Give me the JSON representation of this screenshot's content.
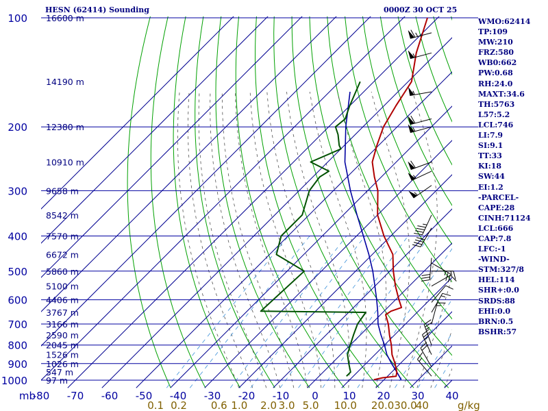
{
  "colors": {
    "frame": "#0000a0",
    "isotherm": "#000090",
    "dry_adiabat": "#00a000",
    "moist_adiabat": "#505050",
    "mixing_ratio": "#3a8fd8",
    "temperature": "#b00000",
    "dewpoint": "#005000",
    "parcel": "#0000a0",
    "label": "#000080",
    "mixing_label": "#806000",
    "wind_barb": "#000000"
  },
  "chart_data": {
    "type": "skew-t log-p",
    "title_left": "HESN (62414) Sounding",
    "title_right": "0000Z 30 OCT 25",
    "pressure_unit_label": "mb",
    "xlim": [
      -80,
      40
    ],
    "pressure_range": [
      100,
      1000
    ],
    "pressure_ticks": [
      100,
      200,
      300,
      400,
      500,
      600,
      700,
      800,
      900,
      1000
    ],
    "temperature_ticks": [
      -80,
      -70,
      -60,
      -50,
      -40,
      -30,
      -20,
      -10,
      0,
      10,
      20,
      30,
      40
    ],
    "temperature_tick_labels": [
      "-80",
      "-70",
      "-60",
      "-50",
      "-40",
      "-30",
      "-20",
      "-10",
      "0",
      "10",
      "20",
      "30",
      "40"
    ],
    "mixing_ratio_unit": "g/kg",
    "mixing_ratio_labels": [
      {
        "value": 0.1,
        "text": "0.1"
      },
      {
        "value": 0.2,
        "text": "0.2"
      },
      {
        "value": 0.6,
        "text": "0.6"
      },
      {
        "value": 1.0,
        "text": "1.0"
      },
      {
        "value": 2.0,
        "text": "2.0"
      },
      {
        "value": 3.0,
        "text": "3.0"
      },
      {
        "value": 5.0,
        "text": "5.0"
      },
      {
        "value": 10.0,
        "text": "10.0"
      },
      {
        "value": 20.0,
        "text": "20.0"
      },
      {
        "value": 30.0,
        "text": "30.0"
      },
      {
        "value": 40.0,
        "text": "40"
      }
    ],
    "height_labels": [
      {
        "p": 100,
        "text": "16600 m"
      },
      {
        "p": 150,
        "text": "14190 m"
      },
      {
        "p": 200,
        "text": "12380 m"
      },
      {
        "p": 250,
        "text": "10910 m"
      },
      {
        "p": 300,
        "text": "9658 m"
      },
      {
        "p": 350,
        "text": "8542 m"
      },
      {
        "p": 400,
        "text": "7570 m"
      },
      {
        "p": 450,
        "text": "6672 m"
      },
      {
        "p": 500,
        "text": "5860 m"
      },
      {
        "p": 550,
        "text": "5100 m"
      },
      {
        "p": 600,
        "text": "4406 m"
      },
      {
        "p": 650,
        "text": "3767 m"
      },
      {
        "p": 700,
        "text": "3166 m"
      },
      {
        "p": 750,
        "text": "2590 m"
      },
      {
        "p": 800,
        "text": "2045 m"
      },
      {
        "p": 850,
        "text": "1526 m"
      },
      {
        "p": 900,
        "text": "1026 m"
      },
      {
        "p": 950,
        "text": "547 m"
      },
      {
        "p": 1000,
        "text": "97 m"
      }
    ],
    "temperature_profile": [
      {
        "p": 100,
        "t": -73
      },
      {
        "p": 125,
        "t": -66
      },
      {
        "p": 150,
        "t": -59
      },
      {
        "p": 175,
        "t": -56.5
      },
      {
        "p": 200,
        "t": -54
      },
      {
        "p": 225,
        "t": -50.5
      },
      {
        "p": 250,
        "t": -47
      },
      {
        "p": 275,
        "t": -42
      },
      {
        "p": 300,
        "t": -37
      },
      {
        "p": 350,
        "t": -30
      },
      {
        "p": 400,
        "t": -22
      },
      {
        "p": 450,
        "t": -14
      },
      {
        "p": 500,
        "t": -9
      },
      {
        "p": 550,
        "t": -4
      },
      {
        "p": 600,
        "t": 1
      },
      {
        "p": 630,
        "t": 4
      },
      {
        "p": 645,
        "t": 2
      },
      {
        "p": 660,
        "t": 1.5
      },
      {
        "p": 700,
        "t": 5
      },
      {
        "p": 750,
        "t": 8.5
      },
      {
        "p": 800,
        "t": 12
      },
      {
        "p": 850,
        "t": 15
      },
      {
        "p": 900,
        "t": 18.5
      },
      {
        "p": 950,
        "t": 21.5
      },
      {
        "p": 975,
        "t": 22.5
      },
      {
        "p": 985,
        "t": 19
      },
      {
        "p": 997,
        "t": 17
      }
    ],
    "dewpoint_profile": [
      {
        "p": 150,
        "t": -74
      },
      {
        "p": 175,
        "t": -70
      },
      {
        "p": 190,
        "t": -67.5
      },
      {
        "p": 200,
        "t": -68
      },
      {
        "p": 210,
        "t": -65
      },
      {
        "p": 225,
        "t": -61.5
      },
      {
        "p": 230,
        "t": -60
      },
      {
        "p": 250,
        "t": -65
      },
      {
        "p": 265,
        "t": -57
      },
      {
        "p": 275,
        "t": -58
      },
      {
        "p": 300,
        "t": -57
      },
      {
        "p": 350,
        "t": -52
      },
      {
        "p": 400,
        "t": -52
      },
      {
        "p": 450,
        "t": -48
      },
      {
        "p": 500,
        "t": -35
      },
      {
        "p": 645,
        "t": -36
      },
      {
        "p": 650,
        "t": -5
      },
      {
        "p": 700,
        "t": -4
      },
      {
        "p": 750,
        "t": -2
      },
      {
        "p": 800,
        "t": 0
      },
      {
        "p": 850,
        "t": 2
      },
      {
        "p": 900,
        "t": 5
      },
      {
        "p": 950,
        "t": 8
      },
      {
        "p": 975,
        "t": 8
      }
    ],
    "parcel_profile": [
      {
        "p": 160,
        "t": -74
      },
      {
        "p": 200,
        "t": -65
      },
      {
        "p": 250,
        "t": -55
      },
      {
        "p": 300,
        "t": -45
      },
      {
        "p": 350,
        "t": -36
      },
      {
        "p": 400,
        "t": -28
      },
      {
        "p": 450,
        "t": -21
      },
      {
        "p": 500,
        "t": -15
      },
      {
        "p": 550,
        "t": -10
      },
      {
        "p": 600,
        "t": -5.5
      },
      {
        "p": 650,
        "t": -1.5
      },
      {
        "p": 700,
        "t": 2
      },
      {
        "p": 750,
        "t": 6
      },
      {
        "p": 800,
        "t": 10
      },
      {
        "p": 850,
        "t": 13.5
      },
      {
        "p": 900,
        "t": 17.5
      },
      {
        "p": 950,
        "t": 21.5
      },
      {
        "p": 997,
        "t": 25
      }
    ],
    "wind_barbs": [
      {
        "p": 110,
        "dir": 255,
        "spd": 65
      },
      {
        "p": 125,
        "dir": 255,
        "spd": 55
      },
      {
        "p": 160,
        "dir": 260,
        "spd": 55
      },
      {
        "p": 190,
        "dir": 255,
        "spd": 60
      },
      {
        "p": 200,
        "dir": 255,
        "spd": 55
      },
      {
        "p": 250,
        "dir": 250,
        "spd": 60
      },
      {
        "p": 265,
        "dir": 245,
        "spd": 55
      },
      {
        "p": 290,
        "dir": 235,
        "spd": 55
      },
      {
        "p": 350,
        "dir": 205,
        "spd": 45
      },
      {
        "p": 380,
        "dir": 210,
        "spd": 40
      },
      {
        "p": 460,
        "dir": 185,
        "spd": 30
      },
      {
        "p": 475,
        "dir": 120,
        "spd": 25
      },
      {
        "p": 500,
        "dir": 90,
        "spd": 15
      },
      {
        "p": 550,
        "dir": 60,
        "spd": 10
      },
      {
        "p": 610,
        "dir": 40,
        "spd": 10
      },
      {
        "p": 650,
        "dir": 30,
        "spd": 15
      },
      {
        "p": 700,
        "dir": 15,
        "spd": 15
      },
      {
        "p": 800,
        "dir": 340,
        "spd": 25
      },
      {
        "p": 850,
        "dir": 335,
        "spd": 25
      },
      {
        "p": 920,
        "dir": 330,
        "spd": 20
      },
      {
        "p": 975,
        "dir": 320,
        "spd": 15
      }
    ]
  },
  "stats": [
    "WMO:62414",
    "TP:109",
    "MW:210",
    "FRZ:580",
    "WB0:662",
    "PW:0.68",
    "RH:24.0",
    "MAXT:34.6",
    "TH:5763",
    "L57:5.2",
    "LCL:746",
    "LI:7.9",
    "SI:9.1",
    "TT:33",
    "KI:18",
    "SW:44",
    "EI:1.2",
    "-PARCEL-",
    "CAPE:28",
    "CINH:71124",
    "LCL:666",
    "CAP:7.8",
    "LFC:-1",
    "-WIND-",
    "STM:327/8",
    "HEL:114",
    "SHR+:0.0",
    "SRDS:88",
    "EHI:0.0",
    "BRN:0.5",
    "BSHR:57"
  ]
}
